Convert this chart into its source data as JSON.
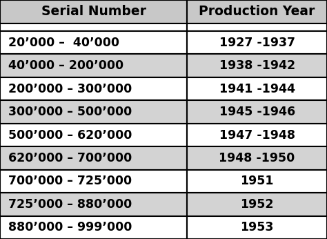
{
  "headers": [
    "Serial Number",
    "Production Year"
  ],
  "rows": [
    [
      "20’000 –  40’000",
      "1927 -1937"
    ],
    [
      "40’000 – 200’000",
      "1938 -1942"
    ],
    [
      "200’000 – 300’000",
      "1941 -1944"
    ],
    [
      "300’000 – 500’000",
      "1945 -1946"
    ],
    [
      "500’000 – 620’000",
      "1947 -1948"
    ],
    [
      "620’000 – 700’000",
      "1948 -1950"
    ],
    [
      "700’000 – 725’000",
      "1951"
    ],
    [
      "725’000 – 880’000",
      "1952"
    ],
    [
      "880’000 – 999’000",
      "1953"
    ]
  ],
  "row_colors_left": [
    "#ffffff",
    "#d3d3d3",
    "#ffffff",
    "#d3d3d3",
    "#ffffff",
    "#d3d3d3",
    "#ffffff",
    "#d3d3d3",
    "#ffffff"
  ],
  "row_colors_right": [
    "#ffffff",
    "#d3d3d3",
    "#ffffff",
    "#d3d3d3",
    "#ffffff",
    "#d3d3d3",
    "#ffffff",
    "#d3d3d3",
    "#ffffff"
  ],
  "header_bg": "#c8c8c8",
  "header_fontsize": 13.5,
  "cell_fontsize": 12.5,
  "border_color": "#000000",
  "text_color": "#000000",
  "fig_bg": "#ffffff",
  "col_split": 0.572,
  "fig_width": 4.74,
  "fig_height": 3.46,
  "dpi": 100
}
